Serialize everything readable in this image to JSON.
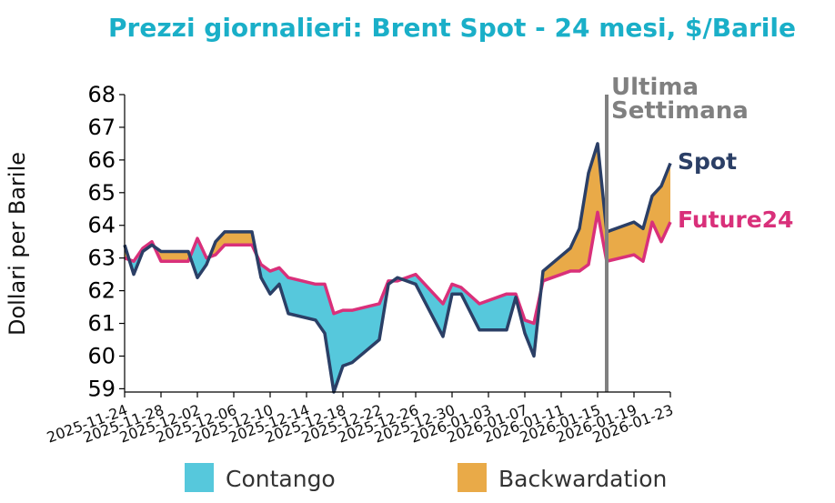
{
  "colors": {
    "title": "#1aafc8",
    "spot": "#2b3f66",
    "future": "#d9307a",
    "contango": "#56c8dc",
    "backwardation": "#e9aa48",
    "marker": "#808080"
  },
  "chart_data": {
    "type": "line",
    "title": "Prezzi giornalieri: Brent Spot - 24 mesi, $/Barile",
    "ylabel": "Dollari per Barile",
    "xlabel": "",
    "ylim": [
      58.9,
      68
    ],
    "yticks": [
      59,
      60,
      61,
      62,
      63,
      64,
      65,
      66,
      67,
      68
    ],
    "x_start": "2025-11-24",
    "x_end": "2026-01-23",
    "xticks": [
      "2025-11-24",
      "2025-11-28",
      "2025-12-02",
      "2025-12-06",
      "2025-12-10",
      "2025-12-14",
      "2025-12-18",
      "2025-12-22",
      "2025-12-26",
      "2025-12-30",
      "2026-01-03",
      "2026-01-07",
      "2026-01-11",
      "2026-01-15",
      "2026-01-19",
      "2026-01-23"
    ],
    "grid": false,
    "legend_position": "bottom",
    "legend": [
      "Contango",
      "Backwardation"
    ],
    "vline": {
      "x": "2026-01-16",
      "label_line1": "Ultima",
      "label_line2": "Settimana"
    },
    "series": [
      {
        "name": "Spot",
        "x": [
          "2025-11-24",
          "2025-11-25",
          "2025-11-26",
          "2025-11-27",
          "2025-11-28",
          "2025-12-01",
          "2025-12-02",
          "2025-12-03",
          "2025-12-04",
          "2025-12-05",
          "2025-12-08",
          "2025-12-09",
          "2025-12-10",
          "2025-12-11",
          "2025-12-12",
          "2025-12-15",
          "2025-12-16",
          "2025-12-17",
          "2025-12-18",
          "2025-12-19",
          "2025-12-22",
          "2025-12-23",
          "2025-12-24",
          "2025-12-26",
          "2025-12-29",
          "2025-12-30",
          "2025-12-31",
          "2026-01-02",
          "2026-01-05",
          "2026-01-06",
          "2026-01-07",
          "2026-01-08",
          "2026-01-09",
          "2026-01-12",
          "2026-01-13",
          "2026-01-14",
          "2026-01-15",
          "2026-01-16",
          "2026-01-19",
          "2026-01-20",
          "2026-01-21",
          "2026-01-22",
          "2026-01-23"
        ],
        "values": [
          63.4,
          62.5,
          63.2,
          63.4,
          63.2,
          63.2,
          62.4,
          62.8,
          63.5,
          63.8,
          63.8,
          62.4,
          61.9,
          62.2,
          61.3,
          61.1,
          60.7,
          58.9,
          59.7,
          59.8,
          60.5,
          62.2,
          62.4,
          62.2,
          60.6,
          61.9,
          61.9,
          60.8,
          60.8,
          61.8,
          60.7,
          60.0,
          62.6,
          63.3,
          63.9,
          65.6,
          66.5,
          63.8,
          64.1,
          63.9,
          64.9,
          65.2,
          65.9
        ]
      },
      {
        "name": "Future24",
        "x": [
          "2025-11-24",
          "2025-11-25",
          "2025-11-26",
          "2025-11-27",
          "2025-11-28",
          "2025-12-01",
          "2025-12-02",
          "2025-12-03",
          "2025-12-04",
          "2025-12-05",
          "2025-12-08",
          "2025-12-09",
          "2025-12-10",
          "2025-12-11",
          "2025-12-12",
          "2025-12-15",
          "2025-12-16",
          "2025-12-17",
          "2025-12-18",
          "2025-12-19",
          "2025-12-22",
          "2025-12-23",
          "2025-12-24",
          "2025-12-26",
          "2025-12-29",
          "2025-12-30",
          "2025-12-31",
          "2026-01-02",
          "2026-01-05",
          "2026-01-06",
          "2026-01-07",
          "2026-01-08",
          "2026-01-09",
          "2026-01-12",
          "2026-01-13",
          "2026-01-14",
          "2026-01-15",
          "2026-01-16",
          "2026-01-19",
          "2026-01-20",
          "2026-01-21",
          "2026-01-22",
          "2026-01-23"
        ],
        "values": [
          63.0,
          62.9,
          63.3,
          63.5,
          62.9,
          62.9,
          63.6,
          63.0,
          63.1,
          63.4,
          63.4,
          62.8,
          62.6,
          62.7,
          62.4,
          62.2,
          62.2,
          61.3,
          61.4,
          61.4,
          61.6,
          62.3,
          62.3,
          62.5,
          61.6,
          62.2,
          62.1,
          61.6,
          61.9,
          61.9,
          61.1,
          61.0,
          62.3,
          62.6,
          62.6,
          62.8,
          64.4,
          62.9,
          63.1,
          62.9,
          64.1,
          63.5,
          64.1
        ]
      }
    ]
  }
}
